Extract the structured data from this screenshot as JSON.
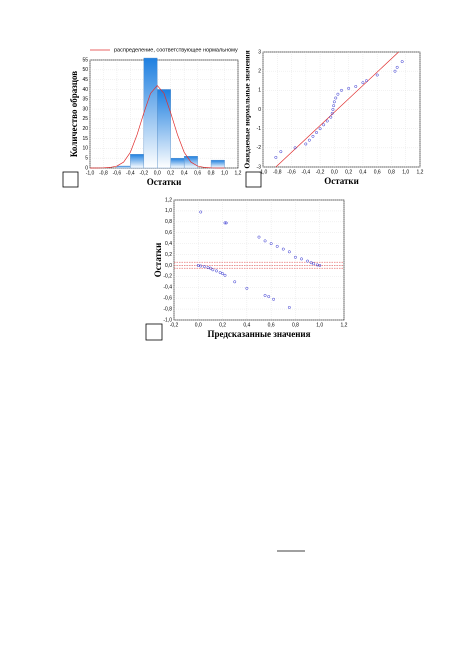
{
  "chart_data": [
    {
      "type": "histogram",
      "xlabel": "Остатки",
      "ylabel": "Количество образцов",
      "bins": [
        -1.0,
        -0.8,
        -0.6,
        -0.4,
        -0.2,
        0.0,
        0.2,
        0.4,
        0.6,
        0.8,
        1.0
      ],
      "counts": [
        0,
        0,
        1,
        7,
        56,
        40,
        5,
        6,
        0,
        4
      ],
      "color": "#1e7fe0",
      "series": [
        {
          "name": "распределение, соответствующее нормальному",
          "color": "#e03030",
          "x": [
            -1.0,
            -0.9,
            -0.8,
            -0.7,
            -0.6,
            -0.5,
            -0.4,
            -0.3,
            -0.2,
            -0.1,
            0.0,
            0.1,
            0.2,
            0.3,
            0.4,
            0.5,
            0.6,
            0.7,
            0.8,
            0.9,
            1.0
          ],
          "values": [
            0,
            0,
            0.1,
            0.3,
            1,
            3,
            8,
            17,
            28,
            38,
            42,
            38,
            28,
            17,
            8,
            3,
            1,
            0.3,
            0.1,
            0,
            0
          ]
        }
      ],
      "xlim": [
        -1.0,
        1.2
      ],
      "ylim": [
        0,
        55
      ],
      "xticks": [
        {
          "value": -1.0,
          "label": "-1,0"
        },
        {
          "value": -0.8,
          "label": "-0,8"
        },
        {
          "value": -0.6,
          "label": "-0,6"
        },
        {
          "value": -0.4,
          "label": "-0,4"
        },
        {
          "value": -0.2,
          "label": "-0,2"
        },
        {
          "value": 0.0,
          "label": "0,0"
        },
        {
          "value": 0.2,
          "label": "0,2"
        },
        {
          "value": 0.4,
          "label": "0,4"
        },
        {
          "value": 0.6,
          "label": "0,6"
        },
        {
          "value": 0.8,
          "label": "0,8"
        },
        {
          "value": 1.0,
          "label": "1,0"
        },
        {
          "value": 1.2,
          "label": "1,2"
        }
      ],
      "yticks": [
        0,
        5,
        10,
        15,
        20,
        25,
        30,
        35,
        40,
        45,
        50,
        55
      ],
      "grid": true
    },
    {
      "type": "scatter",
      "xlabel": "Остатки",
      "ylabel": "Ожидаемые нормальные значения",
      "x": [
        -0.82,
        -0.75,
        -0.55,
        -0.4,
        -0.35,
        -0.3,
        -0.25,
        -0.2,
        -0.15,
        -0.1,
        -0.05,
        -0.03,
        -0.02,
        -0.01,
        0.0,
        0.02,
        0.05,
        0.1,
        0.2,
        0.3,
        0.4,
        0.45,
        0.6,
        0.85,
        0.88,
        0.95
      ],
      "values": [
        -2.5,
        -2.2,
        -2.0,
        -1.8,
        -1.6,
        -1.4,
        -1.2,
        -1.0,
        -0.8,
        -0.6,
        -0.4,
        -0.2,
        0.0,
        0.2,
        0.4,
        0.6,
        0.8,
        1.0,
        1.1,
        1.2,
        1.4,
        1.5,
        1.8,
        2.0,
        2.2,
        2.5
      ],
      "color": "#3030d0",
      "series": [
        {
          "color": "#e03030",
          "x": [
            -0.82,
            0.9
          ],
          "values": [
            -3,
            3
          ]
        }
      ],
      "xlim": [
        -1.0,
        1.2
      ],
      "ylim": [
        -3,
        3
      ],
      "xticks": [
        {
          "value": -1.0,
          "label": "-1,0"
        },
        {
          "value": -0.8,
          "label": "-0,8"
        },
        {
          "value": -0.6,
          "label": "-0,6"
        },
        {
          "value": -0.4,
          "label": "-0,4"
        },
        {
          "value": -0.2,
          "label": "-0,2"
        },
        {
          "value": 0.0,
          "label": "0,0"
        },
        {
          "value": 0.2,
          "label": "0,2"
        },
        {
          "value": 0.4,
          "label": "0,4"
        },
        {
          "value": 0.6,
          "label": "0,6"
        },
        {
          "value": 0.8,
          "label": "0,8"
        },
        {
          "value": 1.0,
          "label": "1,0"
        },
        {
          "value": 1.2,
          "label": "1,2"
        }
      ],
      "yticks": [
        -3,
        -2,
        -1,
        0,
        1,
        2,
        3
      ],
      "grid": true
    },
    {
      "type": "scatter",
      "xlabel": "Предсказанные значения",
      "ylabel": "Остатки",
      "x": [
        0.0,
        0.02,
        0.05,
        0.08,
        0.1,
        0.12,
        0.15,
        0.18,
        0.2,
        0.22,
        0.3,
        0.4,
        0.55,
        0.58,
        0.62,
        0.75,
        0.5,
        0.55,
        0.6,
        0.65,
        0.7,
        0.75,
        0.8,
        0.85,
        0.9,
        0.93,
        0.95,
        0.98,
        1.0,
        0.02,
        0.22,
        0.23
      ],
      "values": [
        0.0,
        -0.01,
        -0.02,
        -0.04,
        -0.05,
        -0.08,
        -0.1,
        -0.13,
        -0.15,
        -0.18,
        -0.3,
        -0.42,
        -0.55,
        -0.57,
        -0.62,
        -0.77,
        0.52,
        0.45,
        0.4,
        0.35,
        0.3,
        0.25,
        0.15,
        0.12,
        0.08,
        0.05,
        0.03,
        0.01,
        0.0,
        0.98,
        0.78,
        0.78
      ],
      "color": "#3030d0",
      "hlines": [
        0.06,
        0.0,
        -0.05
      ],
      "hline_color": "#e03030",
      "xlim": [
        -0.2,
        1.2
      ],
      "ylim": [
        -1.0,
        1.2
      ],
      "xticks": [
        {
          "value": -0.2,
          "label": "-0,2"
        },
        {
          "value": 0.0,
          "label": "0,0"
        },
        {
          "value": 0.2,
          "label": "0,2"
        },
        {
          "value": 0.4,
          "label": "0,4"
        },
        {
          "value": 0.6,
          "label": "0,6"
        },
        {
          "value": 0.8,
          "label": "0,8"
        },
        {
          "value": 1.0,
          "label": "1,0"
        },
        {
          "value": 1.2,
          "label": "1,2"
        }
      ],
      "yticks": [
        {
          "value": -1.0,
          "label": "-1,0"
        },
        {
          "value": -0.8,
          "label": "-0,8"
        },
        {
          "value": -0.6,
          "label": "-0,6"
        },
        {
          "value": -0.4,
          "label": "-0,4"
        },
        {
          "value": -0.2,
          "label": "-0,2"
        },
        {
          "value": 0.0,
          "label": "0,0"
        },
        {
          "value": 0.2,
          "label": "0,2"
        },
        {
          "value": 0.4,
          "label": "0,4"
        },
        {
          "value": 0.6,
          "label": "0,6"
        },
        {
          "value": 0.8,
          "label": "0,8"
        },
        {
          "value": 1.0,
          "label": "1,0"
        },
        {
          "value": 1.2,
          "label": "1,2"
        }
      ],
      "grid": true
    }
  ]
}
